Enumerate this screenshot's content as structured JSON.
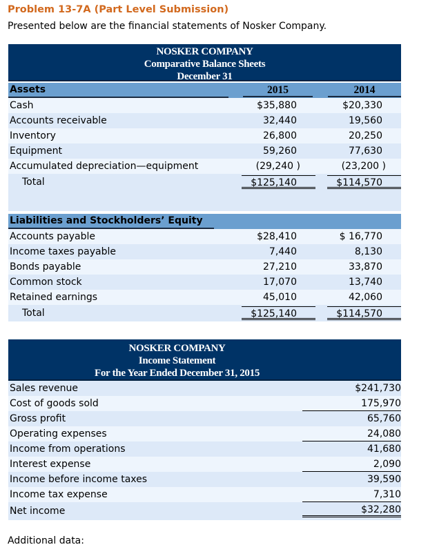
{
  "title": "Problem 13-7A (Part Level Submission)",
  "subtitle": "Presented below are the financial statements of Nosker Company.",
  "balance_sheet": {
    "company": "NOSKER COMPANY",
    "name": "Comparative Balance Sheets",
    "date": "December 31",
    "assets_header": "Assets",
    "years": [
      "2015",
      "2014"
    ],
    "assets": [
      {
        "label": "Cash",
        "v2015": "$35,880",
        "v2014": "$20,330"
      },
      {
        "label": "Accounts receivable",
        "v2015": "32,440",
        "v2014": "19,560"
      },
      {
        "label": "Inventory",
        "v2015": "26,800",
        "v2014": "20,250"
      },
      {
        "label": "Equipment",
        "v2015": "59,260",
        "v2014": "77,630"
      },
      {
        "label": "Accumulated depreciation—equipment",
        "v2015": "(29,240 )",
        "v2014": "(23,200 )"
      }
    ],
    "assets_total": {
      "label": "Total",
      "v2015": "$125,140",
      "v2014": "$114,570"
    },
    "liab_header": "Liabilities and Stockholders’ Equity",
    "liabilities": [
      {
        "label": "Accounts payable",
        "v2015": "$28,410",
        "v2014": "$ 16,770"
      },
      {
        "label": "Income taxes payable",
        "v2015": "7,440",
        "v2014": "8,130"
      },
      {
        "label": "Bonds payable",
        "v2015": "27,210",
        "v2014": "33,870"
      },
      {
        "label": "Common stock",
        "v2015": "17,070",
        "v2014": "13,740"
      },
      {
        "label": "Retained earnings",
        "v2015": "45,010",
        "v2014": "42,060"
      }
    ],
    "liab_total": {
      "label": "Total",
      "v2015": "$125,140",
      "v2014": "$114,570"
    }
  },
  "income_statement": {
    "company": "NOSKER COMPANY",
    "name": "Income Statement",
    "period": "For the Year Ended December 31, 2015",
    "rows": [
      {
        "label": "Sales revenue",
        "value": "$241,730"
      },
      {
        "label": "Cost of goods sold",
        "value": "175,970"
      },
      {
        "label": "Gross profit",
        "value": "65,760"
      },
      {
        "label": "Operating expenses",
        "value": "24,080"
      },
      {
        "label": "Income from operations",
        "value": "41,680"
      },
      {
        "label": "Interest expense",
        "value": "2,090"
      },
      {
        "label": "Income before income taxes",
        "value": "39,590"
      },
      {
        "label": "Income tax expense",
        "value": "7,310"
      },
      {
        "label": "Net income",
        "value": "$32,280"
      }
    ]
  },
  "additional": "Additional data:"
}
